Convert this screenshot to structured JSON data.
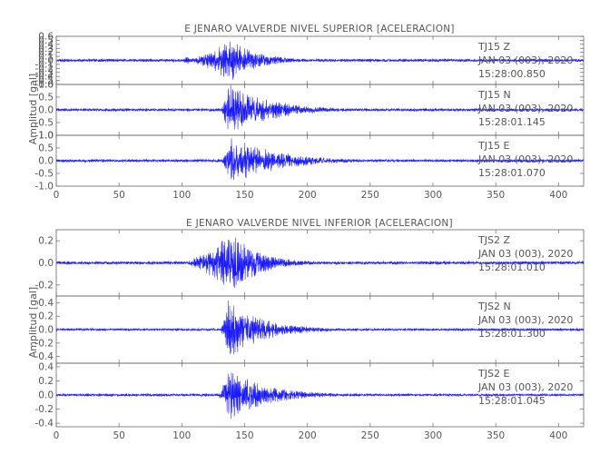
{
  "chart_data": [
    {
      "type": "line",
      "title": "E JENARO VALVERDE NIVEL SUPERIOR [ACELERACION]",
      "ylabel": "Amplitud [gal]",
      "xlabel": "",
      "xlim": [
        0,
        420
      ],
      "x_ticks": [
        "0",
        "50",
        "100",
        "150",
        "200",
        "250",
        "300",
        "350",
        "400"
      ],
      "series_color": "#1a1aff",
      "series": [
        {
          "channel": "TJ15 Z",
          "date": "JAN 03 (003), 2020",
          "start_time": "15:28:00.850",
          "ylim": [
            -0.6,
            0.6
          ],
          "y_ticks": [
            "0.6",
            "0.5",
            "0.4",
            "0.3",
            "0.2",
            "0.1",
            "0.0",
            "-0.1",
            "-0.2",
            "-0.3",
            "-0.4",
            "-0.5",
            "-0.6"
          ],
          "background_amplitude": 0.04,
          "bursts": [
            {
              "start": 100,
              "peak": 140,
              "end": 210,
              "amplitude": 0.55
            },
            {
              "start": 100,
              "peak": 104,
              "end": 112,
              "amplitude": 0.15
            }
          ]
        },
        {
          "channel": "TJ15 N",
          "date": "JAN 03 (003), 2020",
          "start_time": "15:28:01.145",
          "ylim": [
            -1.0,
            1.0
          ],
          "y_ticks": [
            "1.0",
            "0.5",
            "0.0",
            "-0.5",
            "-1.0"
          ],
          "background_amplitude": 0.06,
          "bursts": [
            {
              "start": 130,
              "peak": 137,
              "end": 250,
              "amplitude": 1.05
            }
          ]
        },
        {
          "channel": "TJ15 E",
          "date": "JAN 03 (003), 2020",
          "start_time": "15:28:01.070",
          "ylim": [
            -1.0,
            1.0
          ],
          "y_ticks": [
            "1.0",
            "0.5",
            "0.0",
            "-0.5",
            "-1.0"
          ],
          "background_amplitude": 0.06,
          "bursts": [
            {
              "start": 130,
              "peak": 140,
              "end": 260,
              "amplitude": 1.0
            }
          ]
        }
      ]
    },
    {
      "type": "line",
      "title": "E JENARO VALVERDE NIVEL INFERIOR [ACELERACION]",
      "ylabel": "Amplitud [gal]",
      "xlabel": "",
      "xlim": [
        0,
        420
      ],
      "x_ticks": [
        "0",
        "50",
        "100",
        "150",
        "200",
        "250",
        "300",
        "350",
        "400"
      ],
      "series_color": "#1a1aff",
      "series": [
        {
          "channel": "TJS2 Z",
          "date": "JAN 03 (003), 2020",
          "start_time": "15:28:01.010",
          "ylim": [
            -0.3,
            0.3
          ],
          "y_ticks": [
            "0.2",
            "0.0",
            "-0.2"
          ],
          "background_amplitude": 0.015,
          "bursts": [
            {
              "start": 98,
              "peak": 140,
              "end": 215,
              "amplitude": 0.28
            }
          ]
        },
        {
          "channel": "TJS2 N",
          "date": "JAN 03 (003), 2020",
          "start_time": "15:28:01.300",
          "ylim": [
            -0.5,
            0.5
          ],
          "y_ticks": [
            "0.4",
            "0.2",
            "0.0",
            "-0.2",
            "-0.4"
          ],
          "background_amplitude": 0.02,
          "bursts": [
            {
              "start": 130,
              "peak": 137,
              "end": 230,
              "amplitude": 0.45
            }
          ]
        },
        {
          "channel": "TJS2 E",
          "date": "JAN 03 (003), 2020",
          "start_time": "15:28:01.045",
          "ylim": [
            -0.45,
            0.45
          ],
          "y_ticks": [
            "0.4",
            "0.2",
            "0.0",
            "-0.2",
            "-0.4"
          ],
          "background_amplitude": 0.02,
          "bursts": [
            {
              "start": 128,
              "peak": 137,
              "end": 240,
              "amplitude": 0.38
            }
          ]
        }
      ]
    }
  ]
}
